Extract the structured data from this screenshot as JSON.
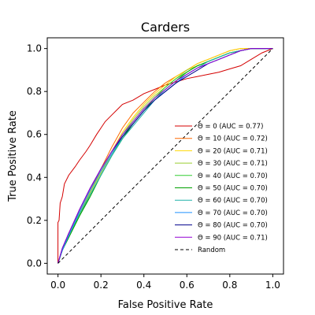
{
  "chart_data": {
    "type": "line",
    "title": "Carders",
    "xlabel": "False Positive Rate",
    "ylabel": "True Positive Rate",
    "xlim": [
      -0.05,
      1.05
    ],
    "ylim": [
      -0.05,
      1.05
    ],
    "xticks": [
      "0.0",
      "0.2",
      "0.4",
      "0.6",
      "0.8",
      "1.0"
    ],
    "yticks": [
      "0.0",
      "0.2",
      "0.4",
      "0.6",
      "0.8",
      "1.0"
    ],
    "grid": false,
    "legend_position": "lower-right",
    "series": [
      {
        "name": "Θ = 0 (AUC = 0.77)",
        "color": "#d40000",
        "x": [
          0,
          0,
          0.005,
          0.01,
          0.02,
          0.03,
          0.05,
          0.08,
          0.1,
          0.13,
          0.15,
          0.18,
          0.2,
          0.22,
          0.25,
          0.28,
          0.3,
          0.35,
          0.4,
          0.45,
          0.5,
          0.55,
          0.6,
          0.65,
          0.7,
          0.75,
          0.8,
          0.85,
          0.9,
          0.95,
          1.0
        ],
        "y": [
          0,
          0.19,
          0.2,
          0.28,
          0.31,
          0.37,
          0.41,
          0.45,
          0.48,
          0.52,
          0.55,
          0.6,
          0.63,
          0.66,
          0.69,
          0.72,
          0.74,
          0.76,
          0.79,
          0.81,
          0.83,
          0.845,
          0.86,
          0.87,
          0.88,
          0.89,
          0.905,
          0.92,
          0.95,
          0.98,
          1.0
        ]
      },
      {
        "name": "Θ = 10 (AUC = 0.72)",
        "color": "#ff6a00",
        "x": [
          0,
          0.02,
          0.05,
          0.1,
          0.15,
          0.2,
          0.25,
          0.3,
          0.35,
          0.4,
          0.45,
          0.5,
          0.55,
          0.6,
          0.65,
          0.7,
          0.75,
          0.8,
          0.85,
          0.9,
          0.95,
          1.0
        ],
        "y": [
          0,
          0.06,
          0.14,
          0.24,
          0.34,
          0.44,
          0.54,
          0.63,
          0.7,
          0.75,
          0.8,
          0.84,
          0.87,
          0.9,
          0.93,
          0.95,
          0.97,
          0.99,
          1.0,
          1.0,
          1.0,
          1.0
        ]
      },
      {
        "name": "Θ = 20 (AUC = 0.71)",
        "color": "#ffd700",
        "x": [
          0,
          0.02,
          0.05,
          0.1,
          0.15,
          0.2,
          0.25,
          0.3,
          0.35,
          0.4,
          0.45,
          0.5,
          0.55,
          0.6,
          0.65,
          0.7,
          0.75,
          0.8,
          0.85,
          0.9,
          0.95,
          1.0
        ],
        "y": [
          0,
          0.06,
          0.14,
          0.23,
          0.33,
          0.43,
          0.52,
          0.61,
          0.68,
          0.74,
          0.79,
          0.83,
          0.87,
          0.9,
          0.93,
          0.95,
          0.97,
          0.99,
          1.0,
          1.0,
          1.0,
          1.0
        ]
      },
      {
        "name": "Θ = 30 (AUC = 0.71)",
        "color": "#9acd32",
        "x": [
          0,
          0.02,
          0.05,
          0.1,
          0.15,
          0.2,
          0.25,
          0.3,
          0.35,
          0.4,
          0.45,
          0.5,
          0.55,
          0.6,
          0.65,
          0.7,
          0.75,
          0.8,
          0.85,
          0.9,
          0.95,
          1.0
        ],
        "y": [
          0,
          0.06,
          0.13,
          0.23,
          0.33,
          0.42,
          0.51,
          0.6,
          0.67,
          0.73,
          0.78,
          0.82,
          0.86,
          0.9,
          0.92,
          0.94,
          0.96,
          0.98,
          0.99,
          1.0,
          1.0,
          1.0
        ]
      },
      {
        "name": "Θ = 40 (AUC = 0.70)",
        "color": "#32cd32",
        "x": [
          0,
          0.02,
          0.05,
          0.1,
          0.15,
          0.2,
          0.25,
          0.3,
          0.35,
          0.4,
          0.45,
          0.5,
          0.55,
          0.6,
          0.65,
          0.7,
          0.75,
          0.8,
          0.85,
          0.9,
          0.95,
          1.0
        ],
        "y": [
          0,
          0.06,
          0.13,
          0.22,
          0.32,
          0.41,
          0.5,
          0.59,
          0.66,
          0.72,
          0.77,
          0.82,
          0.86,
          0.89,
          0.92,
          0.94,
          0.96,
          0.98,
          0.99,
          1.0,
          1.0,
          1.0
        ]
      },
      {
        "name": "Θ = 50 (AUC = 0.70)",
        "color": "#00a000",
        "x": [
          0,
          0.02,
          0.05,
          0.1,
          0.15,
          0.2,
          0.25,
          0.3,
          0.35,
          0.4,
          0.45,
          0.5,
          0.55,
          0.6,
          0.65,
          0.7,
          0.75,
          0.8,
          0.85,
          0.9,
          0.95,
          1.0
        ],
        "y": [
          0,
          0.06,
          0.12,
          0.22,
          0.31,
          0.41,
          0.5,
          0.58,
          0.65,
          0.71,
          0.77,
          0.81,
          0.85,
          0.89,
          0.92,
          0.94,
          0.96,
          0.98,
          0.99,
          1.0,
          1.0,
          1.0
        ]
      },
      {
        "name": "Θ = 60 (AUC = 0.70)",
        "color": "#20b2aa",
        "x": [
          0,
          0.02,
          0.05,
          0.1,
          0.15,
          0.2,
          0.25,
          0.3,
          0.35,
          0.4,
          0.45,
          0.5,
          0.55,
          0.6,
          0.65,
          0.7,
          0.75,
          0.8,
          0.85,
          0.9,
          0.95,
          1.0
        ],
        "y": [
          0,
          0.06,
          0.13,
          0.23,
          0.32,
          0.41,
          0.5,
          0.58,
          0.64,
          0.7,
          0.76,
          0.81,
          0.85,
          0.88,
          0.91,
          0.94,
          0.96,
          0.98,
          0.99,
          1.0,
          1.0,
          1.0
        ]
      },
      {
        "name": "Θ = 70 (AUC = 0.70)",
        "color": "#1e90ff",
        "x": [
          0,
          0.02,
          0.05,
          0.1,
          0.15,
          0.2,
          0.25,
          0.3,
          0.35,
          0.4,
          0.45,
          0.5,
          0.55,
          0.6,
          0.65,
          0.7,
          0.75,
          0.8,
          0.85,
          0.9,
          0.95,
          1.0
        ],
        "y": [
          0,
          0.06,
          0.13,
          0.24,
          0.34,
          0.43,
          0.51,
          0.59,
          0.65,
          0.71,
          0.76,
          0.8,
          0.84,
          0.88,
          0.91,
          0.93,
          0.95,
          0.97,
          0.99,
          1.0,
          1.0,
          1.0
        ]
      },
      {
        "name": "Θ = 80 (AUC = 0.70)",
        "color": "#00008b",
        "x": [
          0,
          0.02,
          0.05,
          0.1,
          0.15,
          0.2,
          0.25,
          0.3,
          0.35,
          0.4,
          0.45,
          0.5,
          0.55,
          0.6,
          0.65,
          0.7,
          0.75,
          0.8,
          0.85,
          0.9,
          0.95,
          1.0
        ],
        "y": [
          0,
          0.07,
          0.14,
          0.25,
          0.35,
          0.44,
          0.52,
          0.59,
          0.65,
          0.71,
          0.76,
          0.8,
          0.84,
          0.87,
          0.9,
          0.93,
          0.95,
          0.97,
          0.99,
          1.0,
          1.0,
          1.0
        ]
      },
      {
        "name": "Θ = 90 (AUC = 0.71)",
        "color": "#9400d3",
        "x": [
          0,
          0.02,
          0.05,
          0.1,
          0.15,
          0.2,
          0.25,
          0.3,
          0.35,
          0.4,
          0.45,
          0.5,
          0.55,
          0.6,
          0.65,
          0.7,
          0.75,
          0.8,
          0.85,
          0.9,
          0.95,
          1.0
        ],
        "y": [
          0,
          0.07,
          0.14,
          0.25,
          0.35,
          0.44,
          0.52,
          0.6,
          0.66,
          0.72,
          0.77,
          0.81,
          0.85,
          0.88,
          0.91,
          0.93,
          0.95,
          0.97,
          0.99,
          1.0,
          1.0,
          1.0
        ]
      },
      {
        "name": "Random",
        "color": "#000000",
        "dashed": true,
        "x": [
          0,
          1
        ],
        "y": [
          0,
          1
        ]
      }
    ]
  }
}
